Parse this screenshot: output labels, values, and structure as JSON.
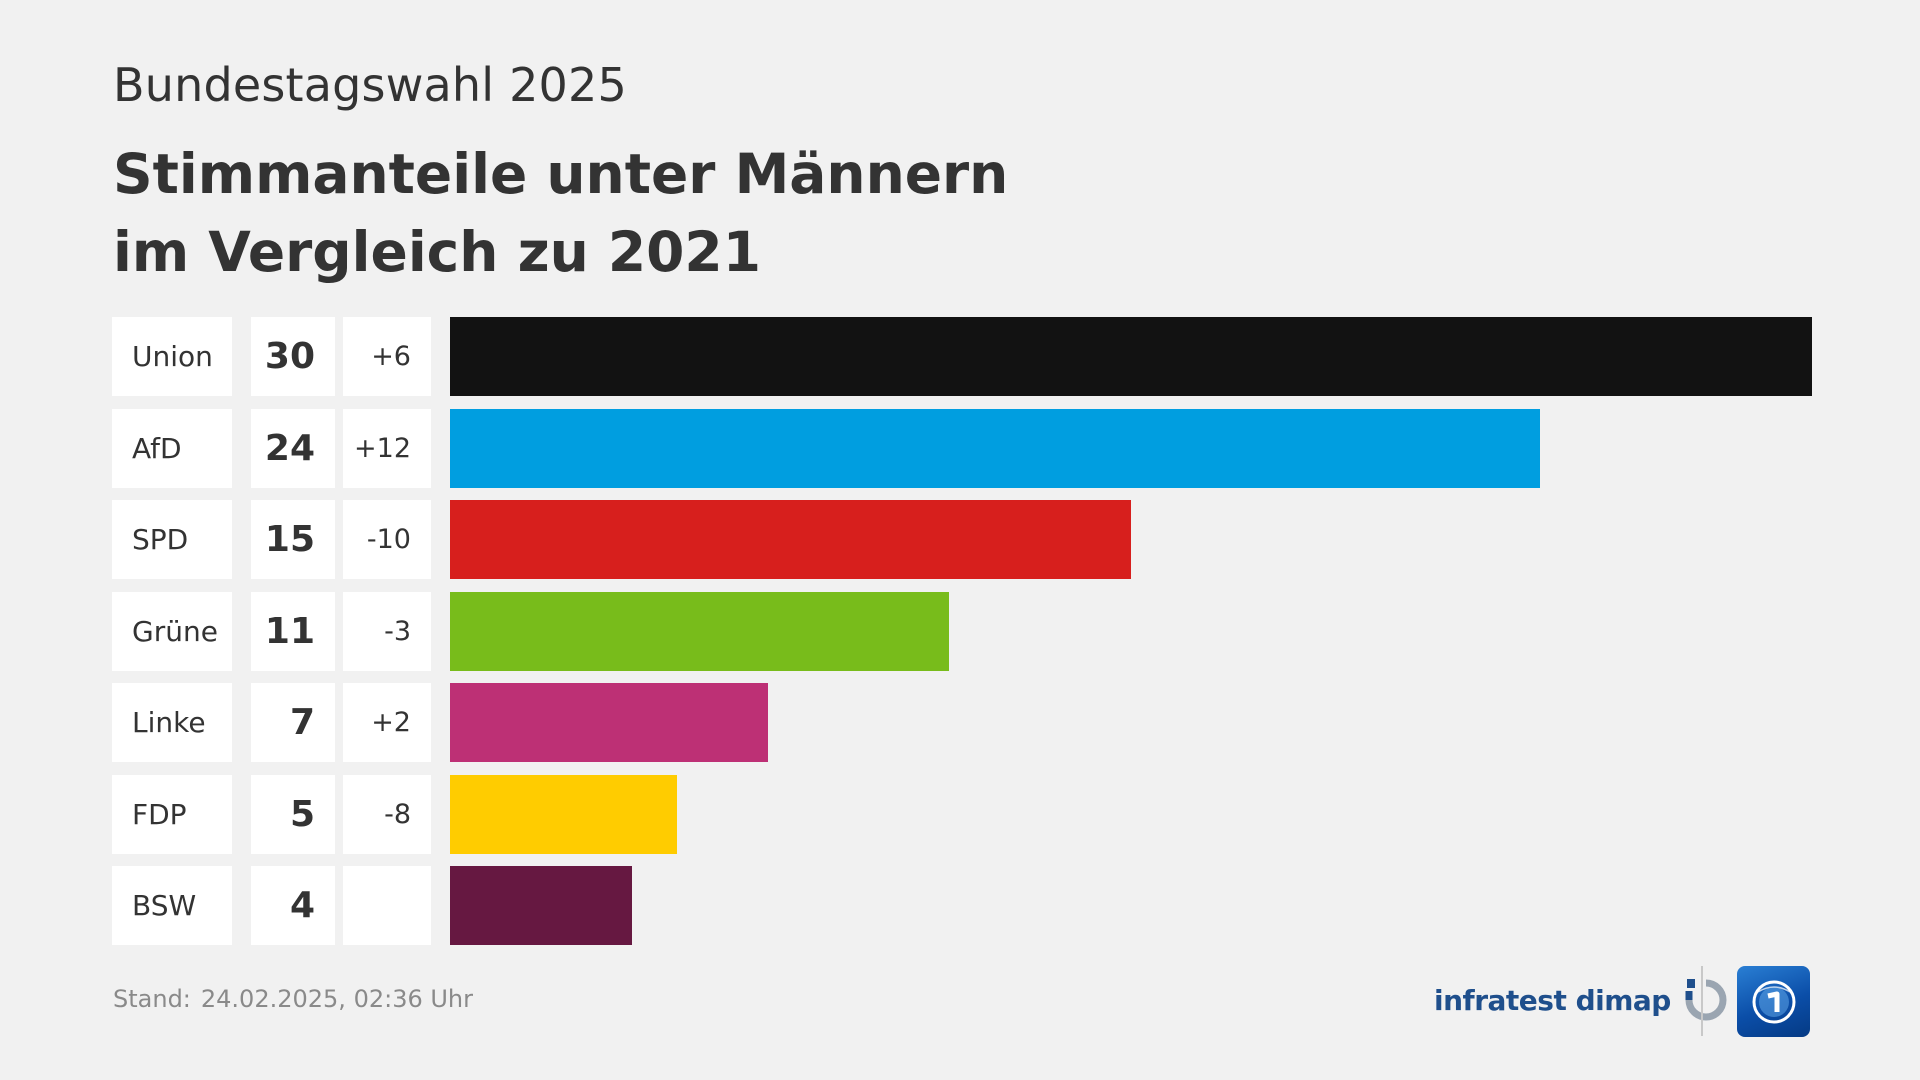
{
  "header": {
    "kicker": "Bundestagswahl 2025",
    "title_line1": "Stimmanteile unter Männern",
    "title_line2": "im Vergleich zu 2021"
  },
  "chart_data": {
    "type": "bar",
    "orientation": "horizontal",
    "title": "Stimmanteile unter Männern im Vergleich zu 2021",
    "xlim": [
      0,
      30
    ],
    "categories": [
      "Union",
      "AfD",
      "SPD",
      "Grüne",
      "Linke",
      "FDP",
      "BSW"
    ],
    "values": [
      30,
      24,
      15,
      11,
      7,
      5,
      4
    ],
    "changes": [
      "+6",
      "+12",
      "-10",
      "-3",
      "+2",
      "-8",
      ""
    ],
    "colors": [
      "#121212",
      "#009ee0",
      "#d71f1d",
      "#78bc1b",
      "#bd3075",
      "#ffcc00",
      "#661841"
    ]
  },
  "footer": {
    "stand_label": "Stand:",
    "stand_value": "24.02.2025, 02:36 Uhr",
    "source": "infratest dimap"
  },
  "icons": {
    "infratest": "infratest-dimap-logo-icon",
    "tagesschau": "tagesschau-globe-logo-icon"
  }
}
